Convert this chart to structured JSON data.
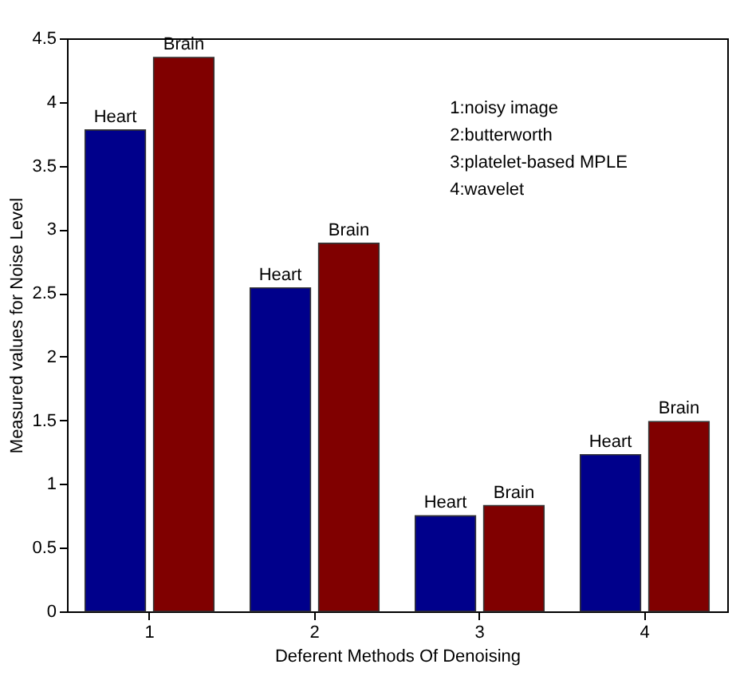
{
  "chart_data": {
    "type": "bar",
    "xlabel": "Deferent Methods Of Denoising",
    "ylabel": "Measured values for Noise Level",
    "categories": [
      "1",
      "2",
      "3",
      "4"
    ],
    "series": [
      {
        "name": "Heart",
        "color": "#00008b",
        "values": [
          3.78,
          2.54,
          0.75,
          1.23
        ]
      },
      {
        "name": "Brain",
        "color": "#800000",
        "values": [
          4.35,
          2.89,
          0.83,
          1.49
        ]
      }
    ],
    "ylim": [
      0,
      4.5
    ],
    "yticks": [
      0,
      0.5,
      1,
      1.5,
      2,
      2.5,
      3,
      3.5,
      4,
      4.5
    ],
    "grid": false,
    "legend": false,
    "annotations": [
      "1:noisy image",
      "2:butterworth",
      "3:platelet-based MPLE",
      "4:wavelet"
    ]
  }
}
